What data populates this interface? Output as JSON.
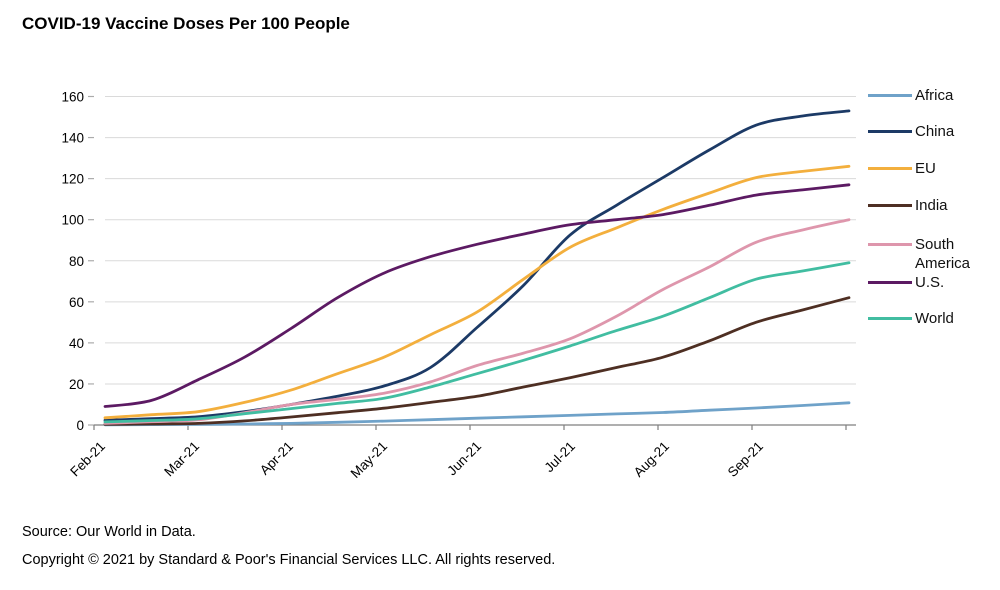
{
  "title": "COVID-19 Vaccine Doses Per 100 People",
  "footer": {
    "source": "Source: Our World in Data.",
    "copyright": "Copyright © 2021 by Standard & Poor's Financial Services LLC. All rights reserved."
  },
  "chart_data": {
    "type": "line",
    "title": "COVID-19 Vaccine Doses Per 100 People",
    "x": [
      "Feb-01",
      "Feb-15",
      "Mar-01",
      "Mar-15",
      "Apr-01",
      "Apr-15",
      "May-01",
      "May-15",
      "Jun-01",
      "Jun-15",
      "Jul-01",
      "Jul-15",
      "Aug-01",
      "Aug-15",
      "Sep-01",
      "Sep-15",
      "Sep-30"
    ],
    "x_tick_labels": [
      "Feb-21",
      "Mar-21",
      "Apr-21",
      "May-21",
      "Jun-21",
      "Jul-21",
      "Aug-21",
      "Sep-21"
    ],
    "y_ticks": [
      0,
      20,
      40,
      60,
      80,
      100,
      120,
      140,
      160
    ],
    "ylim": [
      0,
      160
    ],
    "grid": true,
    "legend_position": "right",
    "series": [
      {
        "name": "Africa",
        "color": "#6FA2C9",
        "values": [
          0.1,
          0.2,
          0.3,
          0.5,
          0.8,
          1.3,
          1.9,
          2.6,
          3.3,
          4.0,
          4.7,
          5.4,
          6.1,
          7.2,
          8.3,
          9.5,
          10.8
        ]
      },
      {
        "name": "China",
        "color": "#1C3A66",
        "values": [
          2.3,
          3.1,
          4.0,
          6.5,
          10,
          14,
          19,
          28,
          47.5,
          68,
          92.5,
          107,
          120.5,
          134,
          146,
          150.5,
          153
        ]
      },
      {
        "name": "EU",
        "color": "#F3AF3D",
        "values": [
          3.5,
          5.0,
          6.5,
          11,
          17,
          25,
          33,
          44,
          55,
          71,
          86.5,
          96,
          105,
          113,
          120.5,
          123.5,
          126
        ]
      },
      {
        "name": "India",
        "color": "#4E2F23",
        "values": [
          0.3,
          0.5,
          0.8,
          2.0,
          3.9,
          6.0,
          8.2,
          11,
          14,
          18.5,
          23,
          28,
          33,
          41,
          50,
          56,
          62
        ]
      },
      {
        "name": "South America",
        "color": "#DE96AC",
        "values": [
          0.8,
          1.6,
          2.5,
          6.0,
          10,
          12.5,
          15.5,
          21,
          29,
          35,
          42,
          53,
          66,
          77,
          89,
          95,
          100
        ]
      },
      {
        "name": "U.S.",
        "color": "#5C1A63",
        "values": [
          9,
          12,
          22,
          33,
          47,
          62,
          74,
          82,
          88,
          93,
          97.5,
          100,
          102.5,
          107,
          112,
          114.5,
          117
        ]
      },
      {
        "name": "World",
        "color": "#41BDA1",
        "values": [
          1.5,
          2.2,
          3.0,
          5.5,
          8.0,
          10.5,
          13,
          18.5,
          25,
          31.5,
          38.5,
          46,
          53,
          62,
          71,
          75,
          79
        ]
      }
    ],
    "colors": {
      "gridline": "#DADADA",
      "axis": "#7F7F7F",
      "text": "#000000"
    }
  }
}
